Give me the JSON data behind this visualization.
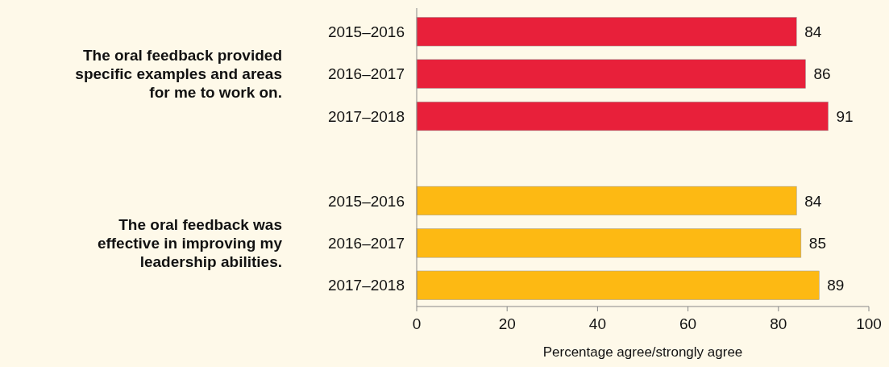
{
  "chart_data": {
    "type": "bar",
    "orientation": "horizontal",
    "xlabel": "Percentage agree/strongly agree",
    "categories": [
      "2015–2016",
      "2016–2017",
      "2017–2018",
      null,
      "2015–2016",
      "2016–2017",
      "2017–2018"
    ],
    "series": [
      {
        "color": "#e8203a",
        "values": [
          84,
          86,
          91,
          null,
          null,
          null,
          null
        ]
      },
      {
        "color": "#fdb913",
        "values": [
          null,
          null,
          null,
          null,
          84,
          85,
          89
        ]
      }
    ],
    "annotations": [
      "The oral feedback provided specific examples and areas for me to work on.",
      "The oral feedback was effective in improving my leadership abilities."
    ],
    "xlim": [
      0,
      100
    ],
    "xticks": [
      0,
      20,
      40,
      60,
      80,
      100
    ],
    "data_labels": true,
    "grid": false
  }
}
